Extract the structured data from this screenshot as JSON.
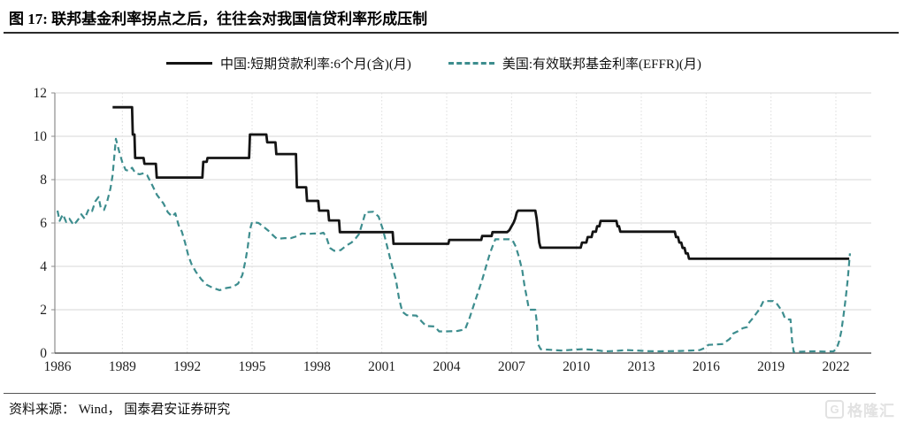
{
  "header": {
    "title": "图 17:  联邦基金利率拐点之后，往往会对我国信贷利率形成压制"
  },
  "legend": [
    {
      "label": "中国:短期贷款利率:6个月(含)(月)",
      "color": "#141414",
      "style": "solid"
    },
    {
      "label": "美国:有效联邦基金利率(EFFR)(月)",
      "color": "#3d8d8e",
      "style": "dashed"
    }
  ],
  "footer": {
    "source": "资料来源： Wind， 国泰君安证券研究"
  },
  "watermark": {
    "icon_text": "G",
    "text": "格隆汇"
  },
  "colors": {
    "china_line": "#141414",
    "us_line": "#3d8d8e",
    "grid_h": "#d7d7d7",
    "grid_v": "#dcdcdc",
    "axis_left": "#8c8c8c",
    "axis_bottom": "#595959",
    "tick_text": "#1f1f1f"
  },
  "chart_data": {
    "type": "line",
    "title": "联邦基金利率拐点之后，往往会对我国信贷利率形成压制",
    "xlabel": "",
    "ylabel": "",
    "x_axis": {
      "ticks": [
        1986,
        1989,
        1992,
        1995,
        1998,
        2001,
        2004,
        2007,
        2010,
        2013,
        2016,
        2019,
        2022
      ],
      "range": [
        1985.9,
        2023.6
      ]
    },
    "y_axis": {
      "ticks": [
        0,
        2,
        4,
        6,
        8,
        10,
        12
      ],
      "range": [
        0,
        12
      ]
    },
    "grid": true,
    "legend_position": "top",
    "series": [
      {
        "name": "中国:短期贷款利率:6个月(含)(月)",
        "color": "#141414",
        "style": "solid",
        "points": [
          [
            1988.55,
            11.34
          ],
          [
            1989.45,
            11.34
          ],
          [
            1989.48,
            10.08
          ],
          [
            1989.56,
            10.08
          ],
          [
            1989.59,
            9.0
          ],
          [
            1989.98,
            9.0
          ],
          [
            1990.02,
            8.73
          ],
          [
            1990.55,
            8.73
          ],
          [
            1990.59,
            8.1
          ],
          [
            1992.7,
            8.1
          ],
          [
            1992.74,
            8.82
          ],
          [
            1992.9,
            8.82
          ],
          [
            1992.94,
            9.0
          ],
          [
            1994.86,
            9.0
          ],
          [
            1994.9,
            10.08
          ],
          [
            1995.66,
            10.08
          ],
          [
            1995.7,
            9.72
          ],
          [
            1996.08,
            9.72
          ],
          [
            1996.12,
            9.18
          ],
          [
            1997.03,
            9.18
          ],
          [
            1997.07,
            7.65
          ],
          [
            1997.5,
            7.65
          ],
          [
            1997.54,
            7.02
          ],
          [
            1998.06,
            7.02
          ],
          [
            1998.1,
            6.57
          ],
          [
            1998.52,
            6.57
          ],
          [
            1998.56,
            6.12
          ],
          [
            1999.02,
            6.12
          ],
          [
            1999.06,
            5.58
          ],
          [
            2001.5,
            5.58
          ],
          [
            2001.54,
            5.04
          ],
          [
            2004.08,
            5.04
          ],
          [
            2004.12,
            5.22
          ],
          [
            2005.6,
            5.22
          ],
          [
            2005.64,
            5.4
          ],
          [
            2006.08,
            5.4
          ],
          [
            2006.12,
            5.58
          ],
          [
            2006.8,
            5.58
          ],
          [
            2006.9,
            5.67
          ],
          [
            2007.0,
            5.85
          ],
          [
            2007.1,
            6.03
          ],
          [
            2007.17,
            6.21
          ],
          [
            2007.24,
            6.48
          ],
          [
            2007.3,
            6.57
          ],
          [
            2008.1,
            6.57
          ],
          [
            2008.16,
            6.21
          ],
          [
            2008.22,
            5.7
          ],
          [
            2008.28,
            5.1
          ],
          [
            2008.34,
            4.86
          ],
          [
            2010.2,
            4.86
          ],
          [
            2010.26,
            5.1
          ],
          [
            2010.46,
            5.1
          ],
          [
            2010.52,
            5.35
          ],
          [
            2010.7,
            5.35
          ],
          [
            2010.76,
            5.6
          ],
          [
            2010.9,
            5.6
          ],
          [
            2010.96,
            5.85
          ],
          [
            2011.06,
            5.85
          ],
          [
            2011.12,
            6.1
          ],
          [
            2011.85,
            6.1
          ],
          [
            2011.9,
            5.85
          ],
          [
            2011.97,
            5.85
          ],
          [
            2012.03,
            5.6
          ],
          [
            2014.55,
            5.6
          ],
          [
            2014.61,
            5.35
          ],
          [
            2014.7,
            5.35
          ],
          [
            2014.76,
            5.1
          ],
          [
            2014.85,
            5.1
          ],
          [
            2014.91,
            4.85
          ],
          [
            2015.0,
            4.85
          ],
          [
            2015.06,
            4.6
          ],
          [
            2015.15,
            4.6
          ],
          [
            2015.21,
            4.35
          ],
          [
            2022.62,
            4.35
          ]
        ]
      },
      {
        "name": "美国:有效联邦基金利率(EFFR)(月)",
        "color": "#3d8d8e",
        "style": "dashed",
        "points": [
          [
            1986.0,
            6.57
          ],
          [
            1986.1,
            6.1
          ],
          [
            1986.25,
            6.4
          ],
          [
            1986.4,
            6.05
          ],
          [
            1986.55,
            6.2
          ],
          [
            1986.75,
            5.9
          ],
          [
            1986.95,
            6.15
          ],
          [
            1987.1,
            6.4
          ],
          [
            1987.25,
            6.2
          ],
          [
            1987.45,
            6.65
          ],
          [
            1987.6,
            6.55
          ],
          [
            1987.75,
            7.0
          ],
          [
            1987.9,
            7.2
          ],
          [
            1988.0,
            6.7
          ],
          [
            1988.15,
            6.6
          ],
          [
            1988.3,
            7.0
          ],
          [
            1988.45,
            7.6
          ],
          [
            1988.55,
            8.2
          ],
          [
            1988.7,
            9.88
          ],
          [
            1988.85,
            9.3
          ],
          [
            1989.0,
            8.8
          ],
          [
            1989.15,
            8.45
          ],
          [
            1989.3,
            8.4
          ],
          [
            1989.45,
            8.55
          ],
          [
            1989.6,
            8.3
          ],
          [
            1989.8,
            8.25
          ],
          [
            1990.0,
            8.3
          ],
          [
            1990.15,
            8.2
          ],
          [
            1990.4,
            7.7
          ],
          [
            1990.6,
            7.3
          ],
          [
            1990.9,
            6.9
          ],
          [
            1991.1,
            6.5
          ],
          [
            1991.3,
            6.3
          ],
          [
            1991.45,
            6.45
          ],
          [
            1991.6,
            5.9
          ],
          [
            1991.75,
            5.6
          ],
          [
            1991.9,
            5.1
          ],
          [
            1992.05,
            4.5
          ],
          [
            1992.2,
            4.1
          ],
          [
            1992.4,
            3.75
          ],
          [
            1992.65,
            3.4
          ],
          [
            1992.9,
            3.15
          ],
          [
            1993.2,
            3.0
          ],
          [
            1993.5,
            2.9
          ],
          [
            1993.8,
            3.0
          ],
          [
            1994.1,
            3.05
          ],
          [
            1994.35,
            3.2
          ],
          [
            1994.55,
            3.6
          ],
          [
            1994.7,
            4.3
          ],
          [
            1994.8,
            4.9
          ],
          [
            1994.9,
            5.7
          ],
          [
            1995.0,
            6.05
          ],
          [
            1995.3,
            6.0
          ],
          [
            1995.5,
            5.85
          ],
          [
            1995.75,
            5.65
          ],
          [
            1995.95,
            5.45
          ],
          [
            1996.15,
            5.27
          ],
          [
            1996.5,
            5.3
          ],
          [
            1996.8,
            5.3
          ],
          [
            1997.1,
            5.4
          ],
          [
            1997.3,
            5.52
          ],
          [
            1997.6,
            5.5
          ],
          [
            1997.9,
            5.52
          ],
          [
            1998.1,
            5.5
          ],
          [
            1998.3,
            5.55
          ],
          [
            1998.45,
            5.3
          ],
          [
            1998.6,
            4.85
          ],
          [
            1998.8,
            4.72
          ],
          [
            1999.1,
            4.75
          ],
          [
            1999.35,
            4.95
          ],
          [
            1999.6,
            5.1
          ],
          [
            1999.8,
            5.3
          ],
          [
            1999.95,
            5.5
          ],
          [
            2000.1,
            6.0
          ],
          [
            2000.25,
            6.5
          ],
          [
            2000.6,
            6.52
          ],
          [
            2000.85,
            6.3
          ],
          [
            2001.05,
            5.7
          ],
          [
            2001.25,
            4.9
          ],
          [
            2001.45,
            4.1
          ],
          [
            2001.65,
            3.4
          ],
          [
            2001.8,
            2.5
          ],
          [
            2001.95,
            1.9
          ],
          [
            2002.15,
            1.75
          ],
          [
            2002.6,
            1.73
          ],
          [
            2002.85,
            1.45
          ],
          [
            2003.05,
            1.25
          ],
          [
            2003.45,
            1.23
          ],
          [
            2003.65,
            1.0
          ],
          [
            2004.0,
            1.0
          ],
          [
            2004.5,
            1.02
          ],
          [
            2004.85,
            1.1
          ],
          [
            2005.05,
            1.6
          ],
          [
            2005.25,
            2.2
          ],
          [
            2005.45,
            2.8
          ],
          [
            2005.65,
            3.4
          ],
          [
            2005.85,
            4.1
          ],
          [
            2006.0,
            4.6
          ],
          [
            2006.15,
            5.0
          ],
          [
            2006.25,
            5.25
          ],
          [
            2006.9,
            5.25
          ],
          [
            2007.05,
            5.2
          ],
          [
            2007.2,
            4.9
          ],
          [
            2007.35,
            4.4
          ],
          [
            2007.5,
            3.8
          ],
          [
            2007.6,
            3.1
          ],
          [
            2007.7,
            2.6
          ],
          [
            2007.78,
            2.15
          ],
          [
            2007.85,
            2.0
          ],
          [
            2008.1,
            2.0
          ],
          [
            2008.17,
            1.4
          ],
          [
            2008.23,
            0.4
          ],
          [
            2008.35,
            0.18
          ],
          [
            2008.8,
            0.15
          ],
          [
            2009.3,
            0.12
          ],
          [
            2009.8,
            0.15
          ],
          [
            2010.3,
            0.18
          ],
          [
            2010.8,
            0.15
          ],
          [
            2011.3,
            0.08
          ],
          [
            2011.8,
            0.1
          ],
          [
            2012.3,
            0.14
          ],
          [
            2012.8,
            0.12
          ],
          [
            2013.3,
            0.09
          ],
          [
            2013.8,
            0.08
          ],
          [
            2014.3,
            0.09
          ],
          [
            2014.8,
            0.1
          ],
          [
            2015.3,
            0.12
          ],
          [
            2015.7,
            0.14
          ],
          [
            2015.95,
            0.24
          ],
          [
            2016.1,
            0.38
          ],
          [
            2016.5,
            0.4
          ],
          [
            2016.8,
            0.42
          ],
          [
            2016.95,
            0.55
          ],
          [
            2017.1,
            0.66
          ],
          [
            2017.25,
            0.9
          ],
          [
            2017.45,
            1.0
          ],
          [
            2017.7,
            1.15
          ],
          [
            2017.9,
            1.2
          ],
          [
            2018.0,
            1.42
          ],
          [
            2018.15,
            1.6
          ],
          [
            2018.3,
            1.8
          ],
          [
            2018.45,
            2.0
          ],
          [
            2018.55,
            2.2
          ],
          [
            2018.65,
            2.4
          ],
          [
            2019.1,
            2.4
          ],
          [
            2019.25,
            2.3
          ],
          [
            2019.4,
            2.1
          ],
          [
            2019.55,
            1.85
          ],
          [
            2019.65,
            1.6
          ],
          [
            2019.75,
            1.55
          ],
          [
            2019.9,
            1.55
          ],
          [
            2019.97,
            0.6
          ],
          [
            2020.05,
            0.05
          ],
          [
            2020.5,
            0.07
          ],
          [
            2021.0,
            0.08
          ],
          [
            2021.5,
            0.07
          ],
          [
            2021.9,
            0.08
          ],
          [
            2022.05,
            0.25
          ],
          [
            2022.15,
            0.55
          ],
          [
            2022.25,
            1.0
          ],
          [
            2022.35,
            1.7
          ],
          [
            2022.45,
            2.5
          ],
          [
            2022.55,
            3.4
          ],
          [
            2022.65,
            4.6
          ]
        ]
      }
    ]
  }
}
